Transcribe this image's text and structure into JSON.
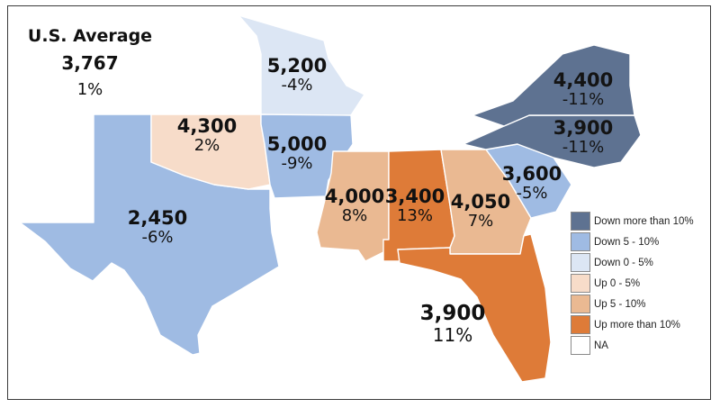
{
  "us_average": {
    "title": "U.S. Average",
    "value": "3,767",
    "change": "1%"
  },
  "colors": {
    "down_more_10": "#5e7291",
    "down_5_10": "#9fbbe3",
    "down_0_5": "#dce6f4",
    "up_0_5": "#f7dcc9",
    "up_5_10": "#eab992",
    "up_more_10": "#de7b38",
    "na": "#ffffff"
  },
  "states": [
    {
      "id": "TX",
      "value": "2,450",
      "change": "-6%",
      "category": "down_5_10"
    },
    {
      "id": "OK",
      "value": "4,300",
      "change": "2%",
      "category": "up_0_5"
    },
    {
      "id": "MO",
      "value": "5,200",
      "change": "-4%",
      "category": "down_0_5"
    },
    {
      "id": "AR",
      "value": "5,000",
      "change": "-9%",
      "category": "down_5_10"
    },
    {
      "id": "MS",
      "value": "4,000",
      "change": "8%",
      "category": "up_5_10"
    },
    {
      "id": "AL",
      "value": "3,400",
      "change": "13%",
      "category": "up_more_10"
    },
    {
      "id": "GA",
      "value": "4,050",
      "change": "7%",
      "category": "up_5_10"
    },
    {
      "id": "FL",
      "value": "3,900",
      "change": "11%",
      "category": "up_more_10"
    },
    {
      "id": "SC",
      "value": "3,600",
      "change": "-5%",
      "category": "down_5_10"
    },
    {
      "id": "NC",
      "value": "3,900",
      "change": "-11%",
      "category": "down_more_10"
    },
    {
      "id": "VA",
      "value": "4,400",
      "change": "-11%",
      "category": "down_more_10"
    }
  ],
  "legend": [
    {
      "label": "Down more than 10%",
      "category": "down_more_10"
    },
    {
      "label": "Down 5 - 10%",
      "category": "down_5_10"
    },
    {
      "label": "Down 0 - 5%",
      "category": "down_0_5"
    },
    {
      "label": "Up 0 - 5%",
      "category": "up_0_5"
    },
    {
      "label": "Up 5 - 10%",
      "category": "up_5_10"
    },
    {
      "label": "Up more than 10%",
      "category": "up_more_10"
    },
    {
      "label": "NA",
      "category": "na"
    }
  ]
}
